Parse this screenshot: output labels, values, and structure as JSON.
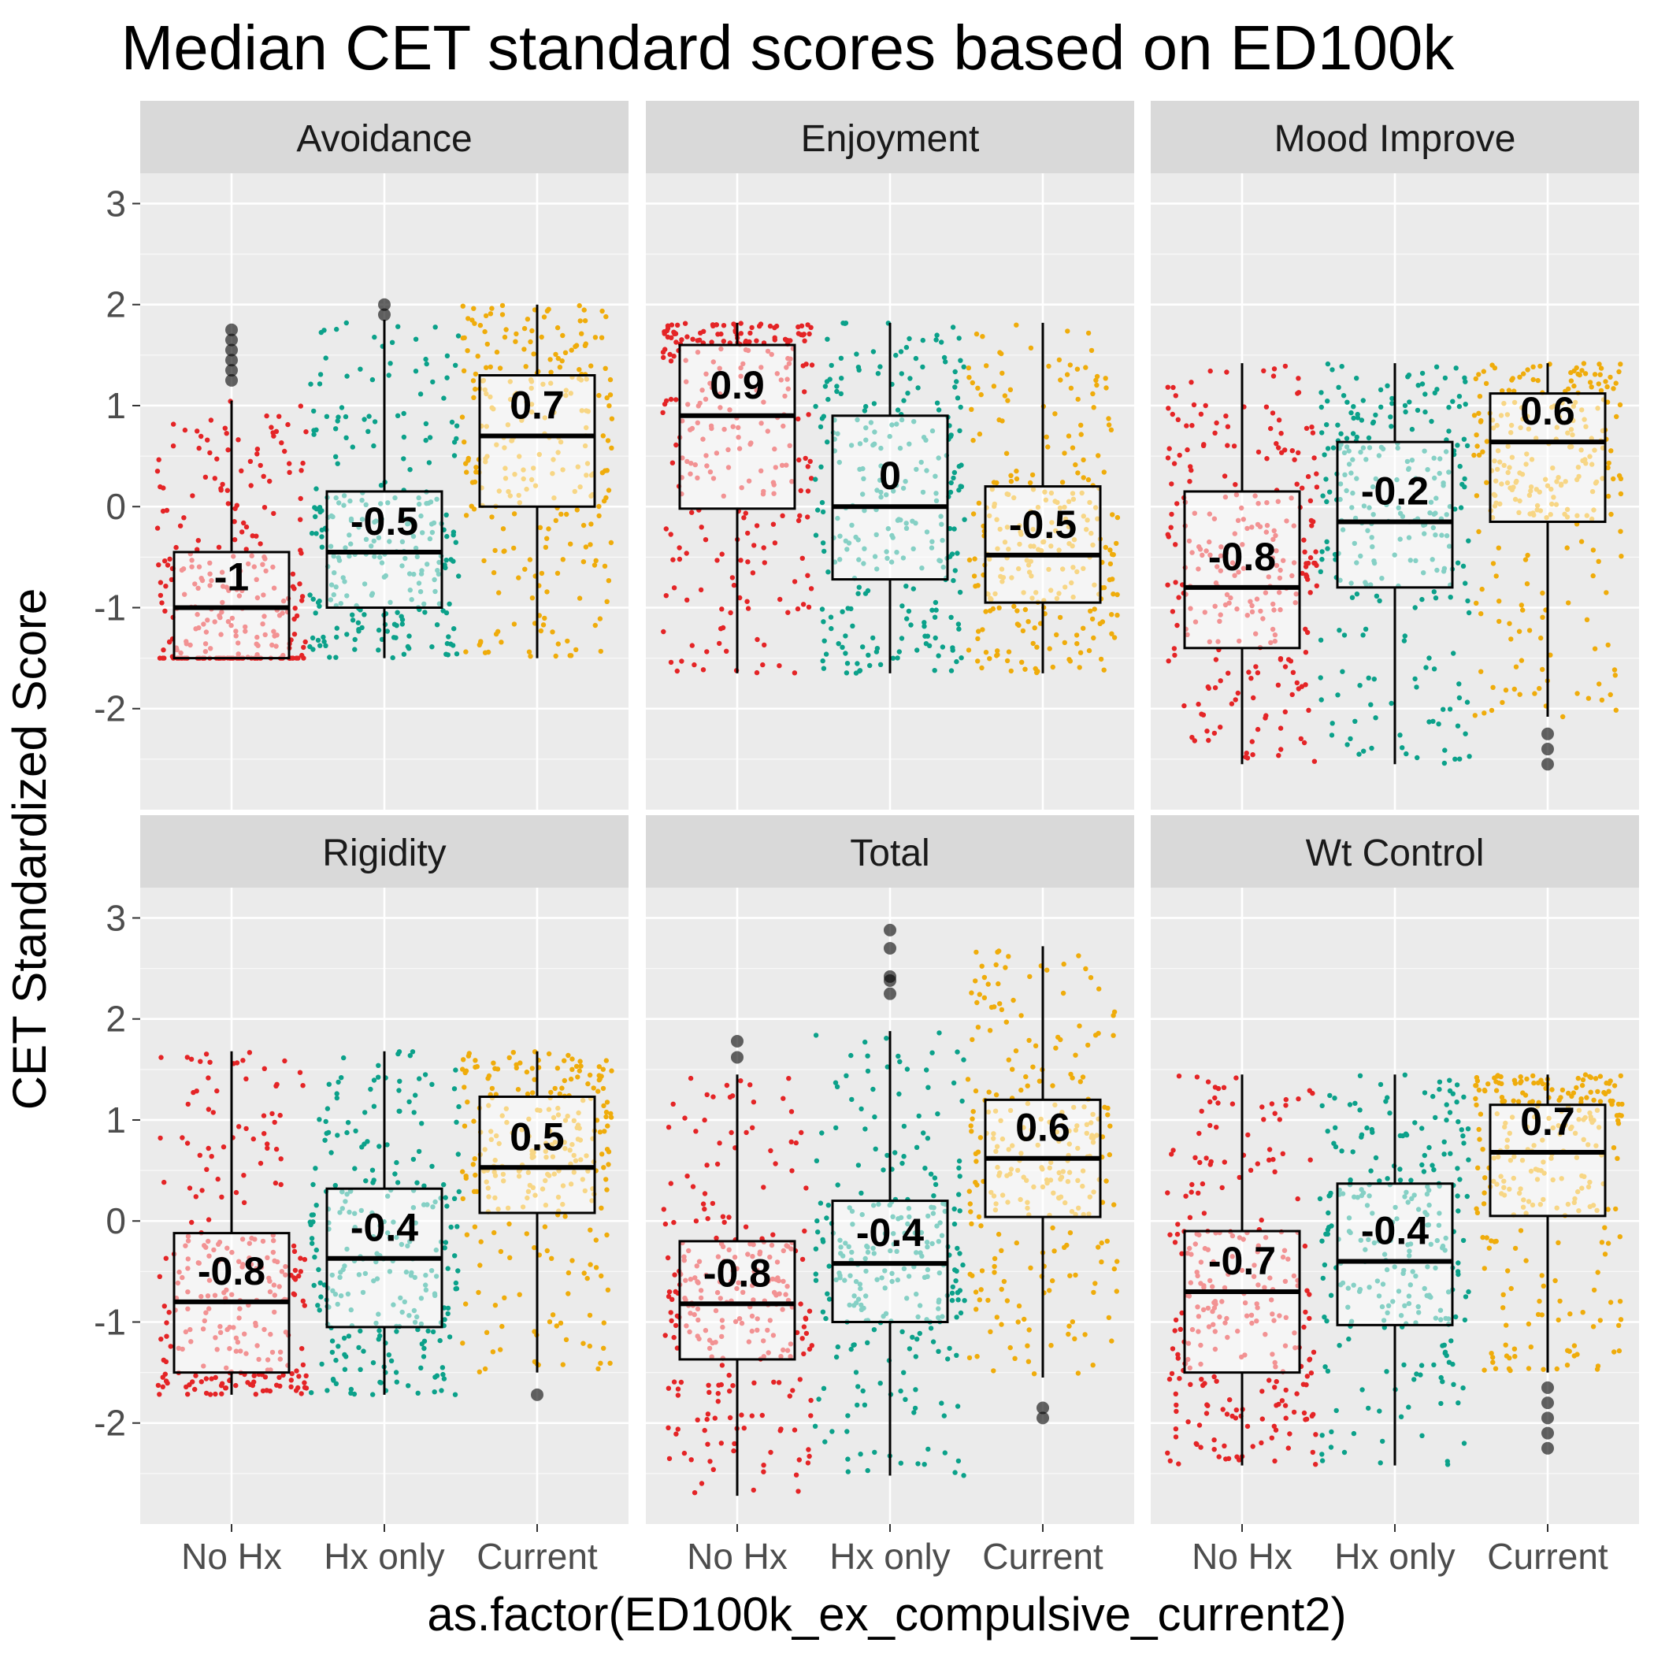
{
  "chart_data": {
    "type": "box",
    "title": "Median CET standard scores based on ED100k",
    "xlabel": "as.factor(ED100k_ex_compulsive_current2)",
    "ylabel": "CET Standardized Score",
    "categories": [
      "No Hx",
      "Hx only",
      "Current"
    ],
    "y_ticks": [
      "-2",
      "-1",
      "0",
      "1",
      "2",
      "3"
    ],
    "ylim": [
      -3,
      3.3
    ],
    "grid": true,
    "legend": "none",
    "colors": {
      "No Hx": "#e41a1c",
      "Hx only": "#009e85",
      "Current": "#f0a900",
      "box_fill": "#ffffff",
      "panel_bg": "#ebebeb",
      "strip_bg": "#d9d9d9"
    },
    "panels": [
      {
        "name": "Avoidance",
        "series": [
          {
            "group": "No Hx",
            "median": -1,
            "median_label": "-1",
            "q1": -1.5,
            "q3": -0.45,
            "whisker_low": -1.5,
            "whisker_high": 1.05,
            "outliers": [
              1.25,
              1.35,
              1.45,
              1.55,
              1.65,
              1.75
            ]
          },
          {
            "group": "Hx only",
            "median": -0.45,
            "median_label": "-0.5",
            "q1": -1.0,
            "q3": 0.15,
            "whisker_low": -1.5,
            "whisker_high": 1.85,
            "outliers": [
              1.9,
              2.0
            ]
          },
          {
            "group": "Current",
            "median": 0.7,
            "median_label": "0.7",
            "q1": 0.0,
            "q3": 1.3,
            "whisker_low": -1.5,
            "whisker_high": 2.0,
            "outliers": []
          }
        ]
      },
      {
        "name": "Enjoyment",
        "series": [
          {
            "group": "No Hx",
            "median": 0.9,
            "median_label": "0.9",
            "q1": -0.02,
            "q3": 1.6,
            "whisker_low": -1.65,
            "whisker_high": 1.82,
            "outliers": []
          },
          {
            "group": "Hx only",
            "median": 0.0,
            "median_label": "0",
            "q1": -0.72,
            "q3": 0.9,
            "whisker_low": -1.65,
            "whisker_high": 1.82,
            "outliers": []
          },
          {
            "group": "Current",
            "median": -0.48,
            "median_label": "-0.5",
            "q1": -0.95,
            "q3": 0.2,
            "whisker_low": -1.65,
            "whisker_high": 1.82,
            "outliers": []
          }
        ]
      },
      {
        "name": "Mood Improve",
        "series": [
          {
            "group": "No Hx",
            "median": -0.8,
            "median_label": "-0.8",
            "q1": -1.4,
            "q3": 0.15,
            "whisker_low": -2.55,
            "whisker_high": 1.42,
            "outliers": []
          },
          {
            "group": "Hx only",
            "median": -0.15,
            "median_label": "-0.2",
            "q1": -0.8,
            "q3": 0.64,
            "whisker_low": -2.55,
            "whisker_high": 1.42,
            "outliers": []
          },
          {
            "group": "Current",
            "median": 0.64,
            "median_label": "0.6",
            "q1": -0.15,
            "q3": 1.12,
            "whisker_low": -2.08,
            "whisker_high": 1.42,
            "outliers": [
              -2.25,
              -2.4,
              -2.55
            ]
          }
        ]
      },
      {
        "name": "Rigidity",
        "series": [
          {
            "group": "No Hx",
            "median": -0.8,
            "median_label": "-0.8",
            "q1": -1.5,
            "q3": -0.12,
            "whisker_low": -1.72,
            "whisker_high": 1.68,
            "outliers": []
          },
          {
            "group": "Hx only",
            "median": -0.37,
            "median_label": "-0.4",
            "q1": -1.05,
            "q3": 0.32,
            "whisker_low": -1.72,
            "whisker_high": 1.68,
            "outliers": []
          },
          {
            "group": "Current",
            "median": 0.53,
            "median_label": "0.5",
            "q1": 0.08,
            "q3": 1.23,
            "whisker_low": -1.5,
            "whisker_high": 1.68,
            "outliers": [
              -1.72
            ]
          }
        ]
      },
      {
        "name": "Total",
        "series": [
          {
            "group": "No Hx",
            "median": -0.82,
            "median_label": "-0.8",
            "q1": -1.37,
            "q3": -0.2,
            "whisker_low": -2.72,
            "whisker_high": 1.45,
            "outliers": [
              1.62,
              1.78
            ]
          },
          {
            "group": "Hx only",
            "median": -0.42,
            "median_label": "-0.4",
            "q1": -1.0,
            "q3": 0.2,
            "whisker_low": -2.52,
            "whisker_high": 1.88,
            "outliers": [
              2.25,
              2.38,
              2.42,
              2.7,
              2.88
            ]
          },
          {
            "group": "Current",
            "median": 0.62,
            "median_label": "0.6",
            "q1": 0.04,
            "q3": 1.2,
            "whisker_low": -1.55,
            "whisker_high": 2.72,
            "outliers": [
              -1.85,
              -1.95
            ]
          }
        ]
      },
      {
        "name": "Wt Control",
        "series": [
          {
            "group": "No Hx",
            "median": -0.7,
            "median_label": "-0.7",
            "q1": -1.5,
            "q3": -0.1,
            "whisker_low": -2.42,
            "whisker_high": 1.45,
            "outliers": []
          },
          {
            "group": "Hx only",
            "median": -0.4,
            "median_label": "-0.4",
            "q1": -1.03,
            "q3": 0.37,
            "whisker_low": -2.42,
            "whisker_high": 1.45,
            "outliers": []
          },
          {
            "group": "Current",
            "median": 0.68,
            "median_label": "0.7",
            "q1": 0.05,
            "q3": 1.15,
            "whisker_low": -1.5,
            "whisker_high": 1.45,
            "outliers": [
              -1.65,
              -1.8,
              -1.95,
              -2.1,
              -2.25
            ]
          }
        ]
      }
    ]
  }
}
